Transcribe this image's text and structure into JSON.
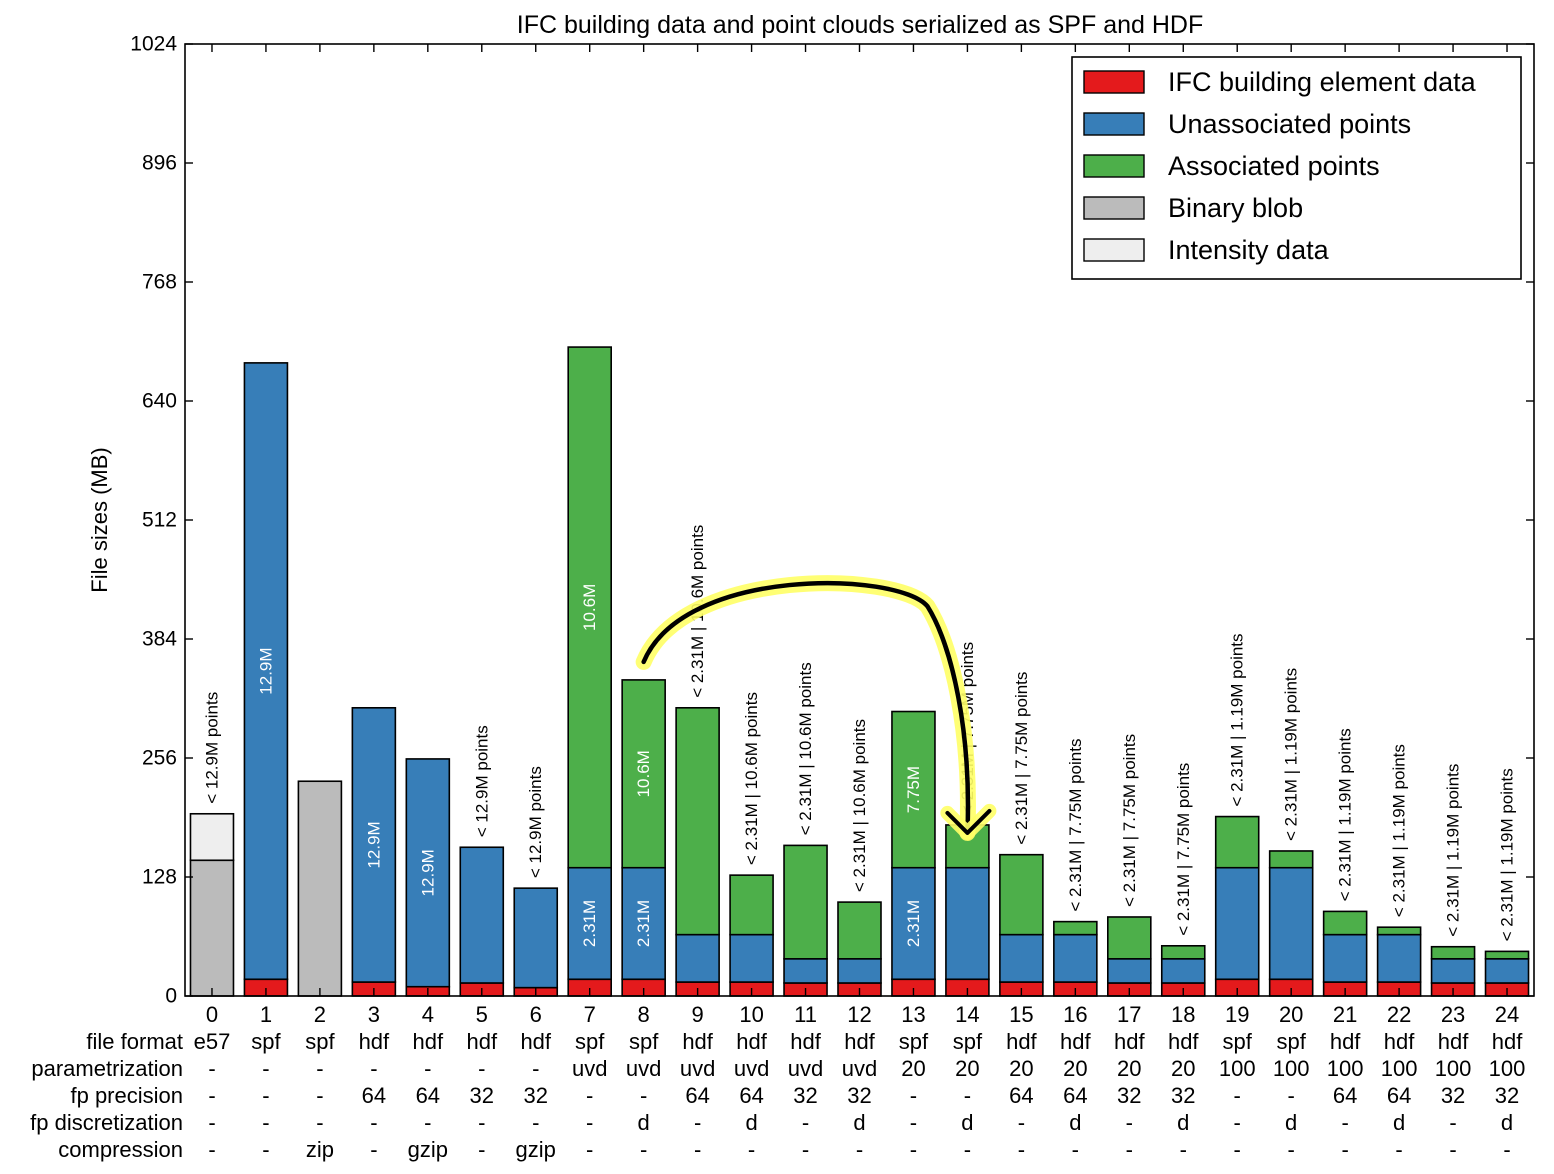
{
  "chart_data": {
    "type": "bar",
    "stacked": true,
    "title": "IFC building data and point clouds serialized as SPF and HDF",
    "xlabel": "",
    "ylabel": "File sizes (MB)",
    "ylim": [
      0,
      1024
    ],
    "yticks": [
      0,
      128,
      256,
      384,
      512,
      640,
      768,
      896,
      1024
    ],
    "grid": false,
    "legend_position": "top-right",
    "categories": [
      "0",
      "1",
      "2",
      "3",
      "4",
      "5",
      "6",
      "7",
      "8",
      "9",
      "10",
      "11",
      "12",
      "13",
      "14",
      "15",
      "16",
      "17",
      "18",
      "19",
      "20",
      "21",
      "22",
      "23",
      "24"
    ],
    "series": [
      {
        "name": "IFC building element data",
        "color": "#e41a1c",
        "values": [
          0,
          18,
          0,
          15,
          10,
          14,
          9,
          18,
          18,
          15,
          15,
          14,
          14,
          18,
          18,
          15,
          15,
          14,
          14,
          18,
          18,
          15,
          15,
          14,
          14
        ]
      },
      {
        "name": "Unassociated points",
        "color": "#377eb8",
        "values": [
          0,
          663,
          0,
          295,
          245,
          146,
          107,
          120,
          120,
          51,
          51,
          26,
          26,
          120,
          120,
          51,
          51,
          26,
          26,
          120,
          120,
          51,
          51,
          26,
          26
        ]
      },
      {
        "name": "Associated points",
        "color": "#4daf4a",
        "values": [
          0,
          0,
          0,
          0,
          0,
          0,
          0,
          560,
          202,
          244,
          64,
          122,
          61,
          168,
          46,
          86,
          14,
          45,
          14,
          55,
          18,
          25,
          8,
          13,
          8
        ]
      },
      {
        "name": "Binary blob",
        "color": "#bbbbbb",
        "values": [
          146,
          0,
          231,
          0,
          0,
          0,
          0,
          0,
          0,
          0,
          0,
          0,
          0,
          0,
          0,
          0,
          0,
          0,
          0,
          0,
          0,
          0,
          0,
          0,
          0
        ]
      },
      {
        "name": "Intensity data",
        "color": "#eeeeee",
        "values": [
          50,
          0,
          0,
          0,
          0,
          0,
          0,
          0,
          0,
          0,
          0,
          0,
          0,
          0,
          0,
          0,
          0,
          0,
          0,
          0,
          0,
          0,
          0,
          0,
          0
        ]
      }
    ],
    "bar_annotations": [
      "< 12.9M points",
      "",
      "",
      "",
      "",
      "< 12.9M points",
      "< 12.9M points",
      "",
      "",
      "< 2.31M | 10.6M points",
      "< 2.31M | 10.6M points",
      "< 2.31M | 10.6M points",
      "< 2.31M | 10.6M points",
      "",
      "< 2.31M | 7.75M points",
      "< 2.31M | 7.75M points",
      "< 2.31M | 7.75M points",
      "< 2.31M | 7.75M points",
      "< 2.31M | 7.75M points",
      "< 2.31M | 1.19M points",
      "< 2.31M | 1.19M points",
      "< 2.31M | 1.19M points",
      "< 2.31M | 1.19M points",
      "< 2.31M | 1.19M points",
      "< 2.31M | 1.19M points"
    ],
    "segment_labels": [
      {
        "bar": 1,
        "series": 1,
        "text": "12.9M"
      },
      {
        "bar": 3,
        "series": 1,
        "text": "12.9M"
      },
      {
        "bar": 4,
        "series": 1,
        "text": "12.9M"
      },
      {
        "bar": 7,
        "series": 1,
        "text": "2.31M"
      },
      {
        "bar": 7,
        "series": 2,
        "text": "10.6M"
      },
      {
        "bar": 8,
        "series": 1,
        "text": "2.31M"
      },
      {
        "bar": 8,
        "series": 2,
        "text": "10.6M"
      },
      {
        "bar": 13,
        "series": 1,
        "text": "2.31M"
      },
      {
        "bar": 13,
        "series": 2,
        "text": "7.75M"
      }
    ],
    "highlight_arrow": {
      "from_bar": 8,
      "to_bar": 14
    },
    "table_rows": [
      {
        "label": "file format",
        "values": [
          "e57",
          "spf",
          "spf",
          "hdf",
          "hdf",
          "hdf",
          "hdf",
          "spf",
          "spf",
          "hdf",
          "hdf",
          "hdf",
          "hdf",
          "spf",
          "spf",
          "hdf",
          "hdf",
          "hdf",
          "hdf",
          "spf",
          "spf",
          "hdf",
          "hdf",
          "hdf",
          "hdf"
        ]
      },
      {
        "label": "parametrization",
        "values": [
          "-",
          "-",
          "-",
          "-",
          "-",
          "-",
          "-",
          "uvd",
          "uvd",
          "uvd",
          "uvd",
          "uvd",
          "uvd",
          "20",
          "20",
          "20",
          "20",
          "20",
          "20",
          "100",
          "100",
          "100",
          "100",
          "100",
          "100"
        ]
      },
      {
        "label": "fp precision",
        "values": [
          "-",
          "-",
          "-",
          "64",
          "64",
          "32",
          "32",
          "-",
          "-",
          "64",
          "64",
          "32",
          "32",
          "-",
          "-",
          "64",
          "64",
          "32",
          "32",
          "-",
          "-",
          "64",
          "64",
          "32",
          "32"
        ]
      },
      {
        "label": "fp discretization",
        "values": [
          "-",
          "-",
          "-",
          "-",
          "-",
          "-",
          "-",
          "-",
          "d",
          "-",
          "d",
          "-",
          "d",
          "-",
          "d",
          "-",
          "d",
          "-",
          "d",
          "-",
          "d",
          "-",
          "d",
          "-",
          "d"
        ]
      },
      {
        "label": "compression",
        "values": [
          "-",
          "-",
          "zip",
          "-",
          "gzip",
          "-",
          "gzip",
          "-",
          "-",
          "-",
          "-",
          "-",
          "-",
          "-",
          "-",
          "-",
          "-",
          "-",
          "-",
          "-",
          "-",
          "-",
          "-",
          "-",
          "-"
        ]
      }
    ]
  }
}
